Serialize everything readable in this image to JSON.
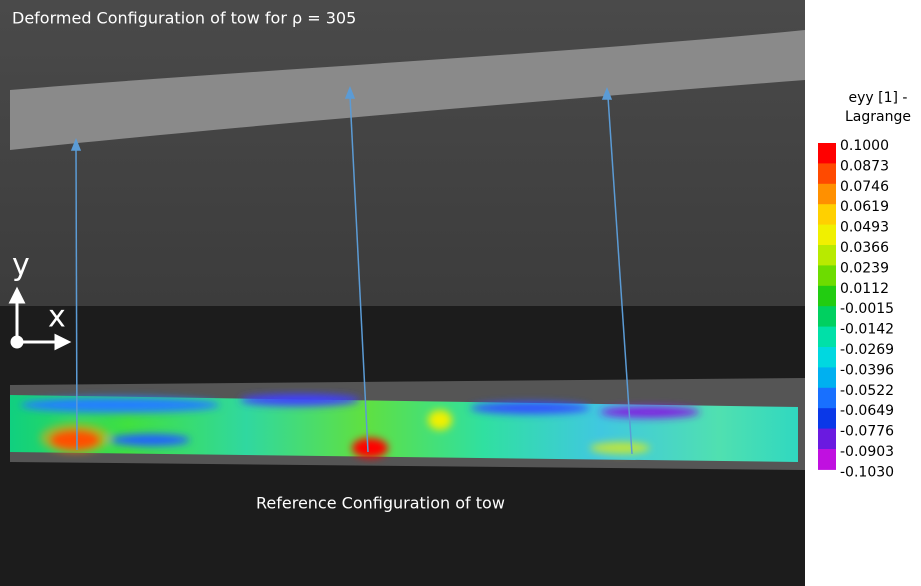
{
  "image": {
    "top_caption": "Deformed Configuration of tow for ρ = 305",
    "bottom_caption": "Reference Configuration of tow",
    "axis_y": "y",
    "axis_x": "x"
  },
  "colorbar": {
    "title_line1": "eyy [1] -",
    "title_line2": "Lagrange",
    "labels": [
      "0.1000",
      "0.0873",
      "0.0746",
      "0.0619",
      "0.0493",
      "0.0366",
      "0.0239",
      "0.0112",
      "-0.0015",
      "-0.0142",
      "-0.0269",
      "-0.0396",
      "-0.0522",
      "-0.0649",
      "-0.0776",
      "-0.0903",
      "-0.1030"
    ],
    "colors": [
      "#ff0000",
      "#ff4a00",
      "#ff9000",
      "#ffd000",
      "#f0f000",
      "#b8ea00",
      "#6ddc00",
      "#22cc11",
      "#00d060",
      "#00e0a8",
      "#00d8e0",
      "#00b0f0",
      "#1870ff",
      "#0a38e8",
      "#6a1ae0",
      "#c010e0"
    ]
  }
}
